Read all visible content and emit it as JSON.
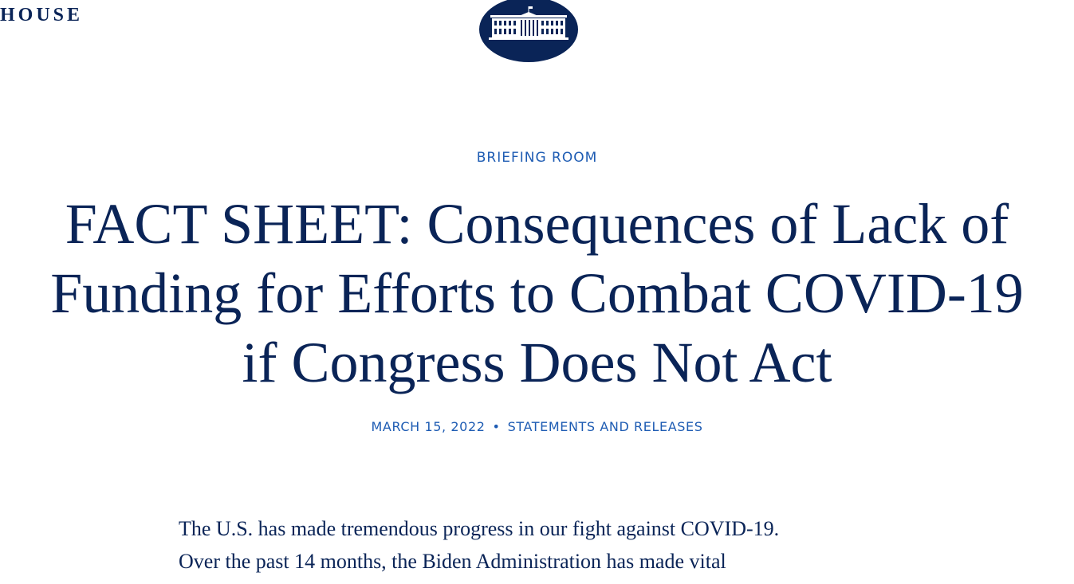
{
  "header": {
    "site_name": "HOUSE",
    "logo_icon": "white-house-seal-icon",
    "brand_color": "#0a2457",
    "link_color": "#1e5cb3"
  },
  "article": {
    "category": "BRIEFING ROOM",
    "title": "FACT SHEET: Consequences of Lack of Funding for Efforts to Combat COVID-19 if Congress Does Not Act",
    "date": "MARCH 15, 2022",
    "separator": "•",
    "type": "STATEMENTS AND RELEASES",
    "paragraph_lines": [
      "The U.S. has made tremendous progress in our fight against COVID-19.",
      "Over the past 14 months, the Biden Administration has made vital"
    ]
  }
}
